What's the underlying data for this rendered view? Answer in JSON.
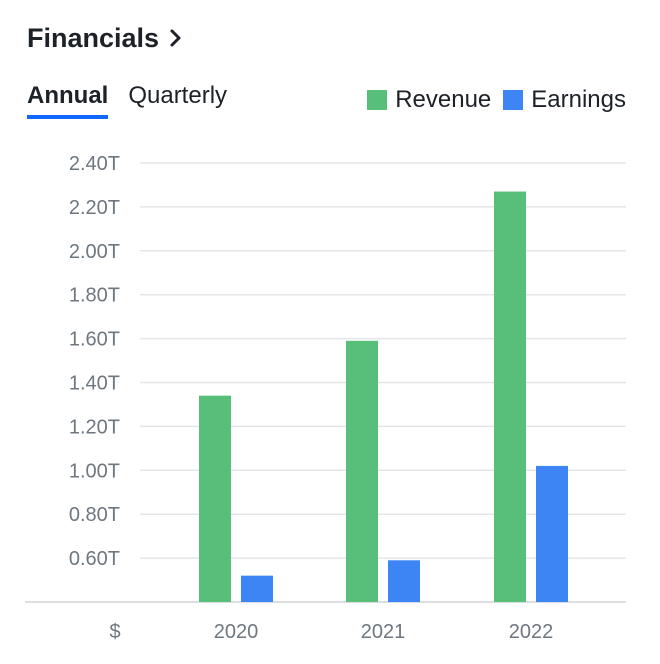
{
  "header": {
    "title": "Financials"
  },
  "tabs": [
    {
      "label": "Annual",
      "active": true
    },
    {
      "label": "Quarterly",
      "active": false
    }
  ],
  "colors": {
    "revenue": "#58bf7b",
    "earnings": "#3d85f5",
    "tab_underline": "#0f69ff"
  },
  "chart_data": {
    "type": "bar",
    "categories": [
      "2020",
      "2021",
      "2022"
    ],
    "series": [
      {
        "name": "Revenue",
        "values": [
          1.34,
          1.59,
          2.27
        ]
      },
      {
        "name": "Earnings",
        "values": [
          0.52,
          0.59,
          1.02
        ]
      }
    ],
    "ylim": [
      0.4,
      2.4
    ],
    "yticks": [
      "0.60T",
      "0.80T",
      "1.00T",
      "1.20T",
      "1.40T",
      "1.60T",
      "1.80T",
      "2.00T",
      "2.20T",
      "2.40T"
    ],
    "ytick_values": [
      0.6,
      0.8,
      1.0,
      1.2,
      1.4,
      1.6,
      1.8,
      2.0,
      2.2,
      2.4
    ],
    "y_unit_label": "$",
    "grid": true,
    "legend_position": "top-right"
  }
}
